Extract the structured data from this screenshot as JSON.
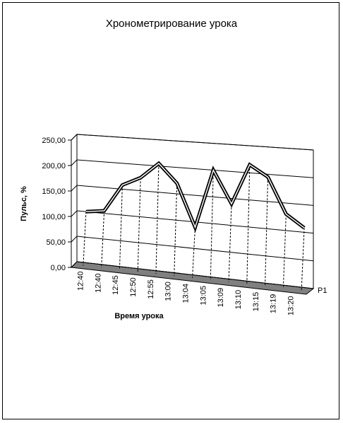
{
  "chart_data": {
    "type": "line",
    "title": "Хронометрирование урока",
    "xlabel": "Время урока",
    "ylabel": "Пульс, %",
    "categories": [
      "12:40",
      "12:40",
      "12:45",
      "12:50",
      "12:55",
      "13:00",
      "13:04",
      "13:05",
      "13:09",
      "13:10",
      "13:15",
      "13:19",
      "13:20"
    ],
    "series": [
      {
        "name": "P1",
        "values": [
          100,
          105,
          158,
          175,
          205,
          170,
          90,
          200,
          140,
          215,
          195,
          130,
          108
        ]
      }
    ],
    "ylim": [
      0,
      250
    ],
    "yticks": [
      "0,00",
      "50,00",
      "100,00",
      "150,00",
      "200,00",
      "250,00"
    ],
    "grid": true,
    "legend": "right",
    "style": "3d-line",
    "colors": {
      "line": "#000000",
      "floor": "#808080",
      "grid": "#000000"
    }
  }
}
